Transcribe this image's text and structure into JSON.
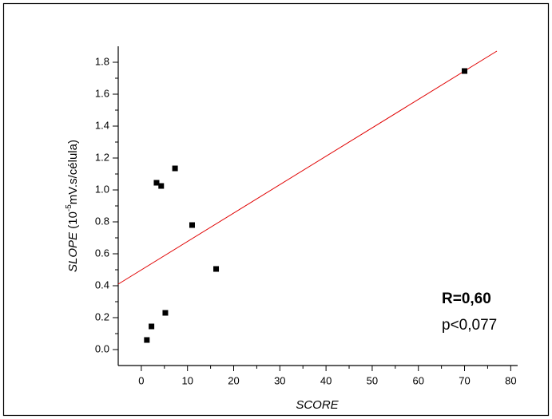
{
  "chart_data": {
    "type": "scatter",
    "xlabel": "SCORE",
    "ylabel_parts": [
      "SLOPE",
      " (10",
      "-5",
      "mV.s/célula)"
    ],
    "annotations": [
      "R=0,60",
      "p<0,077"
    ],
    "xlim": [
      -5,
      81.5
    ],
    "ylim": [
      -0.1,
      1.9
    ],
    "xticks": [
      0,
      10,
      20,
      30,
      40,
      50,
      60,
      70,
      80
    ],
    "yticks": [
      {
        "value": 0,
        "label": "0.0"
      },
      0.2,
      0.4,
      0.6,
      0.8,
      {
        "value": 1,
        "label": "1.0"
      },
      1.2,
      1.4,
      1.6,
      1.8
    ],
    "series": [
      {
        "color": "#000000",
        "x": [
          1.2,
          2.2,
          3.3,
          4.3,
          5.2,
          7.3,
          11,
          16.2,
          70
        ],
        "values": [
          0.06,
          0.145,
          1.045,
          1.025,
          0.23,
          1.135,
          0.78,
          0.505,
          1.745
        ]
      }
    ],
    "fit": {
      "color": "#e00000",
      "x": [
        -5,
        77
      ],
      "values": [
        0.41,
        1.87
      ]
    }
  }
}
